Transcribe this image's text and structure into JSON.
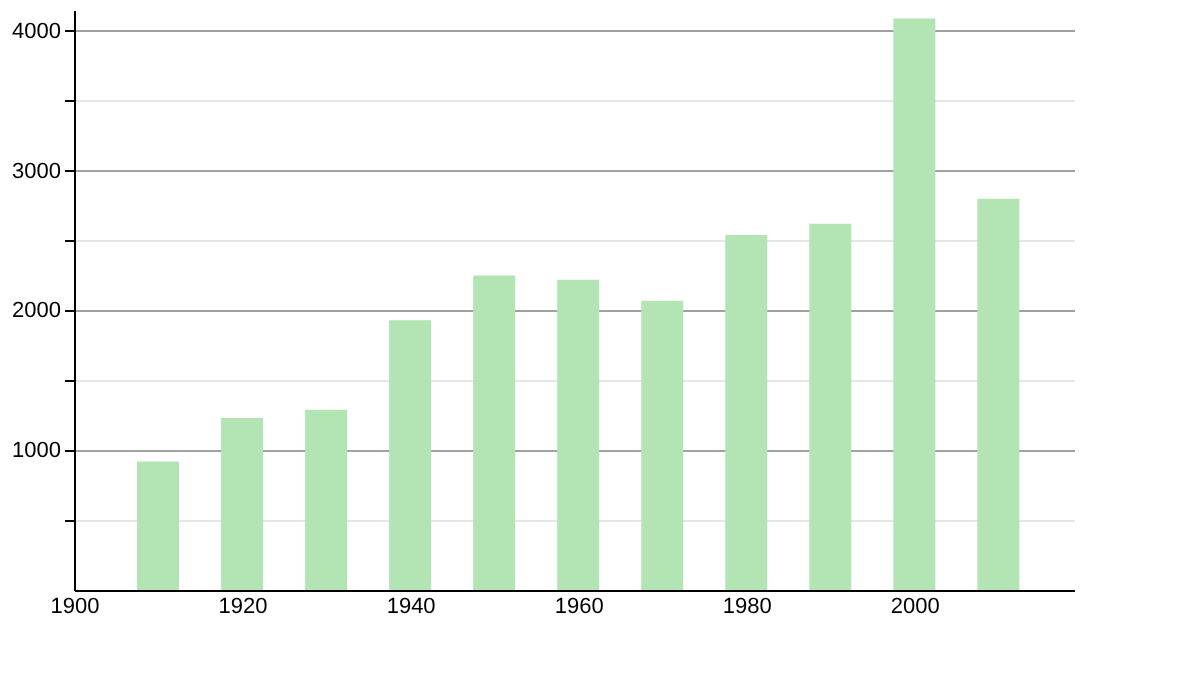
{
  "chart_data": {
    "type": "bar",
    "x": [
      1910,
      1920,
      1930,
      1940,
      1950,
      1960,
      1970,
      1980,
      1990,
      2000,
      2010
    ],
    "values": [
      920,
      1230,
      1290,
      1930,
      2250,
      2220,
      2070,
      2540,
      2620,
      4090,
      2800
    ],
    "color": "#b3e5b4",
    "xlim": [
      1900,
      2019
    ],
    "xticks": [
      1900,
      1920,
      1940,
      1960,
      1980,
      2000
    ],
    "ylim": [
      0,
      4150
    ],
    "yticks": [
      {
        "value": 500,
        "label": null
      },
      1000,
      {
        "value": 1500,
        "label": null
      },
      2000,
      {
        "value": 2500,
        "label": null
      },
      3000,
      {
        "value": 3500,
        "label": null
      },
      4000
    ],
    "grid": "y"
  }
}
